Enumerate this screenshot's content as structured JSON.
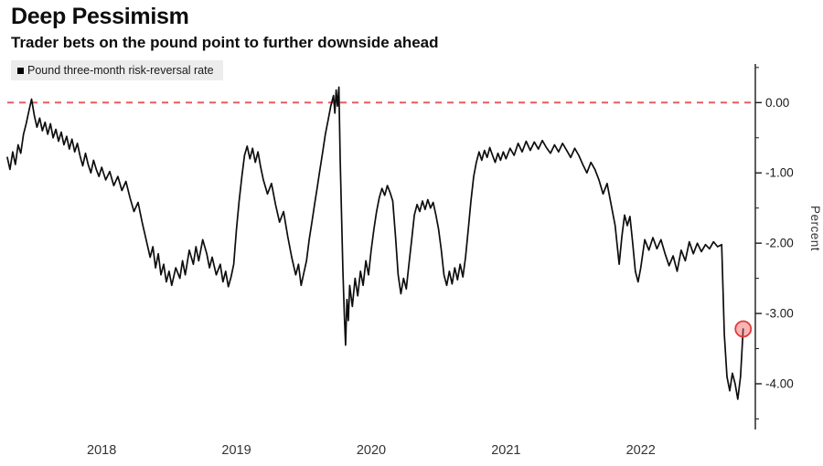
{
  "header": {
    "title": "Deep Pessimism",
    "subtitle": "Trader bets on the pound point to further downside ahead"
  },
  "chart_data": {
    "type": "line",
    "title": "Deep Pessimism",
    "subtitle": "Trader bets on the pound point to further downside ahead",
    "legend": [
      "Pound three-month risk-reversal rate"
    ],
    "legend_position": "top-left",
    "ylabel": "Percent",
    "xlabel": "",
    "grid": false,
    "xlim": [
      2017.3,
      2022.85
    ],
    "ylim": [
      -4.65,
      0.55
    ],
    "yticks": [
      {
        "v": 0.0,
        "label": "0.00"
      },
      {
        "v": -1.0,
        "label": "-1.00"
      },
      {
        "v": -2.0,
        "label": "-2.00"
      },
      {
        "v": -3.0,
        "label": "-3.00"
      },
      {
        "v": -4.0,
        "label": "-4.00"
      }
    ],
    "yticks_minor": [
      0.5,
      -0.5,
      -1.5,
      -2.5,
      -3.5,
      -4.5
    ],
    "xticks": [
      {
        "v": 2018,
        "label": "2018"
      },
      {
        "v": 2019,
        "label": "2019"
      },
      {
        "v": 2020,
        "label": "2020"
      },
      {
        "v": 2021,
        "label": "2021"
      },
      {
        "v": 2022,
        "label": "2022"
      }
    ],
    "annotations": {
      "zero_reference_line": {
        "value": 0.0,
        "style": "dashed"
      },
      "highlighted_last_point": {
        "x": 2022.76,
        "y": -3.22
      }
    },
    "style": {
      "line_color": "#0d0d0d",
      "zero_line_color": "#e8494e",
      "marker_fill": "rgba(240,90,90,0.45)",
      "marker_stroke": "#e03a3a",
      "axis_color": "#1a1a1a",
      "background": "#ffffff"
    },
    "points": [
      [
        2017.3,
        -0.78
      ],
      [
        2017.32,
        -0.95
      ],
      [
        2017.34,
        -0.7
      ],
      [
        2017.36,
        -0.88
      ],
      [
        2017.38,
        -0.6
      ],
      [
        2017.4,
        -0.72
      ],
      [
        2017.42,
        -0.45
      ],
      [
        2017.44,
        -0.3
      ],
      [
        2017.46,
        -0.12
      ],
      [
        2017.48,
        0.05
      ],
      [
        2017.5,
        -0.18
      ],
      [
        2017.52,
        -0.35
      ],
      [
        2017.54,
        -0.22
      ],
      [
        2017.56,
        -0.4
      ],
      [
        2017.58,
        -0.28
      ],
      [
        2017.6,
        -0.45
      ],
      [
        2017.62,
        -0.3
      ],
      [
        2017.64,
        -0.5
      ],
      [
        2017.66,
        -0.38
      ],
      [
        2017.68,
        -0.55
      ],
      [
        2017.7,
        -0.42
      ],
      [
        2017.72,
        -0.6
      ],
      [
        2017.74,
        -0.48
      ],
      [
        2017.76,
        -0.66
      ],
      [
        2017.78,
        -0.52
      ],
      [
        2017.8,
        -0.7
      ],
      [
        2017.82,
        -0.58
      ],
      [
        2017.84,
        -0.76
      ],
      [
        2017.86,
        -0.9
      ],
      [
        2017.88,
        -0.72
      ],
      [
        2017.9,
        -0.88
      ],
      [
        2017.92,
        -1.0
      ],
      [
        2017.94,
        -0.82
      ],
      [
        2017.96,
        -0.95
      ],
      [
        2017.98,
        -1.05
      ],
      [
        2018.0,
        -0.92
      ],
      [
        2018.03,
        -1.1
      ],
      [
        2018.06,
        -0.98
      ],
      [
        2018.09,
        -1.18
      ],
      [
        2018.12,
        -1.05
      ],
      [
        2018.15,
        -1.25
      ],
      [
        2018.18,
        -1.12
      ],
      [
        2018.21,
        -1.35
      ],
      [
        2018.24,
        -1.55
      ],
      [
        2018.27,
        -1.42
      ],
      [
        2018.3,
        -1.7
      ],
      [
        2018.33,
        -1.95
      ],
      [
        2018.36,
        -2.2
      ],
      [
        2018.38,
        -2.05
      ],
      [
        2018.4,
        -2.35
      ],
      [
        2018.42,
        -2.15
      ],
      [
        2018.44,
        -2.45
      ],
      [
        2018.46,
        -2.3
      ],
      [
        2018.48,
        -2.55
      ],
      [
        2018.5,
        -2.4
      ],
      [
        2018.52,
        -2.6
      ],
      [
        2018.55,
        -2.35
      ],
      [
        2018.58,
        -2.5
      ],
      [
        2018.6,
        -2.25
      ],
      [
        2018.62,
        -2.45
      ],
      [
        2018.65,
        -2.1
      ],
      [
        2018.68,
        -2.3
      ],
      [
        2018.7,
        -2.05
      ],
      [
        2018.72,
        -2.25
      ],
      [
        2018.75,
        -1.95
      ],
      [
        2018.78,
        -2.15
      ],
      [
        2018.8,
        -2.35
      ],
      [
        2018.82,
        -2.2
      ],
      [
        2018.85,
        -2.45
      ],
      [
        2018.88,
        -2.3
      ],
      [
        2018.9,
        -2.55
      ],
      [
        2018.92,
        -2.4
      ],
      [
        2018.94,
        -2.62
      ],
      [
        2018.96,
        -2.48
      ],
      [
        2018.98,
        -2.3
      ],
      [
        2019.0,
        -1.8
      ],
      [
        2019.02,
        -1.4
      ],
      [
        2019.04,
        -1.05
      ],
      [
        2019.06,
        -0.75
      ],
      [
        2019.08,
        -0.62
      ],
      [
        2019.1,
        -0.8
      ],
      [
        2019.12,
        -0.65
      ],
      [
        2019.14,
        -0.85
      ],
      [
        2019.16,
        -0.7
      ],
      [
        2019.18,
        -0.92
      ],
      [
        2019.2,
        -1.1
      ],
      [
        2019.23,
        -1.3
      ],
      [
        2019.26,
        -1.15
      ],
      [
        2019.29,
        -1.45
      ],
      [
        2019.32,
        -1.7
      ],
      [
        2019.35,
        -1.55
      ],
      [
        2019.38,
        -1.9
      ],
      [
        2019.41,
        -2.2
      ],
      [
        2019.44,
        -2.45
      ],
      [
        2019.46,
        -2.3
      ],
      [
        2019.48,
        -2.6
      ],
      [
        2019.5,
        -2.42
      ],
      [
        2019.52,
        -2.25
      ],
      [
        2019.54,
        -1.95
      ],
      [
        2019.56,
        -1.7
      ],
      [
        2019.58,
        -1.45
      ],
      [
        2019.6,
        -1.2
      ],
      [
        2019.62,
        -0.95
      ],
      [
        2019.64,
        -0.7
      ],
      [
        2019.66,
        -0.45
      ],
      [
        2019.68,
        -0.25
      ],
      [
        2019.7,
        -0.05
      ],
      [
        2019.72,
        0.1
      ],
      [
        2019.73,
        -0.15
      ],
      [
        2019.74,
        0.18
      ],
      [
        2019.75,
        -0.05
      ],
      [
        2019.76,
        0.22
      ],
      [
        2019.77,
        -0.8
      ],
      [
        2019.78,
        -1.6
      ],
      [
        2019.79,
        -2.4
      ],
      [
        2019.8,
        -3.0
      ],
      [
        2019.81,
        -3.45
      ],
      [
        2019.82,
        -2.8
      ],
      [
        2019.83,
        -3.1
      ],
      [
        2019.84,
        -2.6
      ],
      [
        2019.86,
        -2.9
      ],
      [
        2019.88,
        -2.5
      ],
      [
        2019.9,
        -2.75
      ],
      [
        2019.92,
        -2.4
      ],
      [
        2019.94,
        -2.6
      ],
      [
        2019.96,
        -2.25
      ],
      [
        2019.98,
        -2.45
      ],
      [
        2020.0,
        -2.1
      ],
      [
        2020.02,
        -1.8
      ],
      [
        2020.04,
        -1.55
      ],
      [
        2020.06,
        -1.35
      ],
      [
        2020.08,
        -1.22
      ],
      [
        2020.1,
        -1.32
      ],
      [
        2020.12,
        -1.18
      ],
      [
        2020.14,
        -1.28
      ],
      [
        2020.16,
        -1.4
      ],
      [
        2020.18,
        -1.9
      ],
      [
        2020.2,
        -2.45
      ],
      [
        2020.22,
        -2.72
      ],
      [
        2020.24,
        -2.5
      ],
      [
        2020.26,
        -2.65
      ],
      [
        2020.28,
        -2.3
      ],
      [
        2020.3,
        -1.95
      ],
      [
        2020.32,
        -1.6
      ],
      [
        2020.34,
        -1.45
      ],
      [
        2020.36,
        -1.55
      ],
      [
        2020.38,
        -1.4
      ],
      [
        2020.4,
        -1.52
      ],
      [
        2020.42,
        -1.38
      ],
      [
        2020.44,
        -1.5
      ],
      [
        2020.46,
        -1.42
      ],
      [
        2020.48,
        -1.6
      ],
      [
        2020.5,
        -1.8
      ],
      [
        2020.52,
        -2.1
      ],
      [
        2020.54,
        -2.45
      ],
      [
        2020.56,
        -2.6
      ],
      [
        2020.58,
        -2.4
      ],
      [
        2020.6,
        -2.58
      ],
      [
        2020.62,
        -2.35
      ],
      [
        2020.64,
        -2.52
      ],
      [
        2020.66,
        -2.3
      ],
      [
        2020.68,
        -2.48
      ],
      [
        2020.7,
        -2.2
      ],
      [
        2020.72,
        -1.8
      ],
      [
        2020.74,
        -1.4
      ],
      [
        2020.76,
        -1.05
      ],
      [
        2020.78,
        -0.85
      ],
      [
        2020.8,
        -0.7
      ],
      [
        2020.82,
        -0.82
      ],
      [
        2020.84,
        -0.68
      ],
      [
        2020.86,
        -0.78
      ],
      [
        2020.88,
        -0.64
      ],
      [
        2020.9,
        -0.75
      ],
      [
        2020.92,
        -0.85
      ],
      [
        2020.94,
        -0.72
      ],
      [
        2020.96,
        -0.82
      ],
      [
        2020.98,
        -0.7
      ],
      [
        2021.0,
        -0.8
      ],
      [
        2021.03,
        -0.65
      ],
      [
        2021.06,
        -0.75
      ],
      [
        2021.09,
        -0.58
      ],
      [
        2021.12,
        -0.7
      ],
      [
        2021.15,
        -0.55
      ],
      [
        2021.18,
        -0.68
      ],
      [
        2021.21,
        -0.56
      ],
      [
        2021.24,
        -0.66
      ],
      [
        2021.27,
        -0.54
      ],
      [
        2021.3,
        -0.64
      ],
      [
        2021.33,
        -0.72
      ],
      [
        2021.36,
        -0.6
      ],
      [
        2021.39,
        -0.7
      ],
      [
        2021.42,
        -0.58
      ],
      [
        2021.45,
        -0.68
      ],
      [
        2021.48,
        -0.78
      ],
      [
        2021.51,
        -0.65
      ],
      [
        2021.54,
        -0.75
      ],
      [
        2021.57,
        -0.88
      ],
      [
        2021.6,
        -1.0
      ],
      [
        2021.63,
        -0.85
      ],
      [
        2021.66,
        -0.95
      ],
      [
        2021.69,
        -1.1
      ],
      [
        2021.72,
        -1.3
      ],
      [
        2021.75,
        -1.15
      ],
      [
        2021.78,
        -1.45
      ],
      [
        2021.81,
        -1.75
      ],
      [
        2021.84,
        -2.3
      ],
      [
        2021.86,
        -1.9
      ],
      [
        2021.88,
        -1.6
      ],
      [
        2021.9,
        -1.75
      ],
      [
        2021.92,
        -1.62
      ],
      [
        2021.94,
        -2.0
      ],
      [
        2021.96,
        -2.4
      ],
      [
        2021.98,
        -2.55
      ],
      [
        2022.0,
        -2.35
      ],
      [
        2022.03,
        -1.95
      ],
      [
        2022.06,
        -2.1
      ],
      [
        2022.09,
        -1.92
      ],
      [
        2022.12,
        -2.08
      ],
      [
        2022.15,
        -1.95
      ],
      [
        2022.18,
        -2.15
      ],
      [
        2022.21,
        -2.32
      ],
      [
        2022.24,
        -2.18
      ],
      [
        2022.27,
        -2.4
      ],
      [
        2022.3,
        -2.1
      ],
      [
        2022.33,
        -2.25
      ],
      [
        2022.36,
        -1.98
      ],
      [
        2022.39,
        -2.15
      ],
      [
        2022.42,
        -2.0
      ],
      [
        2022.45,
        -2.12
      ],
      [
        2022.48,
        -2.02
      ],
      [
        2022.51,
        -2.08
      ],
      [
        2022.54,
        -1.98
      ],
      [
        2022.57,
        -2.05
      ],
      [
        2022.6,
        -2.02
      ],
      [
        2022.62,
        -3.3
      ],
      [
        2022.64,
        -3.9
      ],
      [
        2022.66,
        -4.1
      ],
      [
        2022.68,
        -3.85
      ],
      [
        2022.7,
        -4.0
      ],
      [
        2022.72,
        -4.22
      ],
      [
        2022.74,
        -3.9
      ],
      [
        2022.76,
        -3.22
      ]
    ]
  }
}
